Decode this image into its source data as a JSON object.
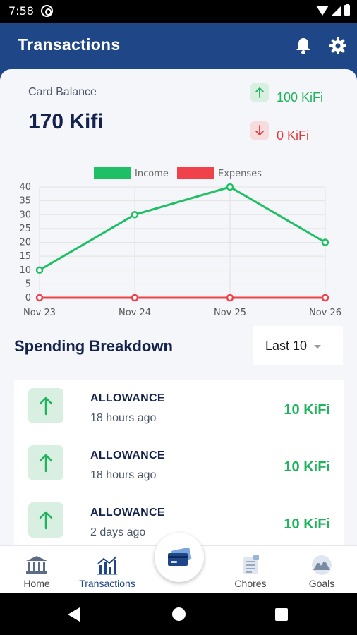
{
  "status_bar": {
    "time": "7:58"
  },
  "app_bar": {
    "title": "Transactions"
  },
  "balance": {
    "label": "Card Balance",
    "value": "170 Kifi"
  },
  "stats": {
    "income": "100 KiFi",
    "expenses": "0 KiFi"
  },
  "chart_data": {
    "type": "line",
    "categories": [
      "Nov 23",
      "Nov 24",
      "Nov 25",
      "Nov 26"
    ],
    "series": [
      {
        "name": "Income",
        "values": [
          10,
          30,
          40,
          20
        ],
        "color": "#1fbf65"
      },
      {
        "name": "Expenses",
        "values": [
          0,
          0,
          0,
          0
        ],
        "color": "#f0424a"
      }
    ],
    "y_ticks": [
      "0",
      "5",
      "10",
      "15",
      "20",
      "25",
      "30",
      "35",
      "40"
    ],
    "ylim": [
      0,
      40
    ],
    "grid": true,
    "legend": "top"
  },
  "breakdown": {
    "title": "Spending Breakdown",
    "filter": "Last 10",
    "items": [
      {
        "name": "ALLOWANCE",
        "time": "18 hours ago",
        "amount": "10 KiFi"
      },
      {
        "name": "ALLOWANCE",
        "time": "18 hours ago",
        "amount": "10 KiFi"
      },
      {
        "name": "ALLOWANCE",
        "time": "2 days ago",
        "amount": "10 KiFi"
      }
    ]
  },
  "nav": {
    "home": "Home",
    "transactions": "Transactions",
    "chores": "Chores",
    "goals": "Goals"
  },
  "icons": {
    "bell": "bell-icon",
    "gear": "gear-icon",
    "income": "arrow-up-icon",
    "expense": "arrow-down-icon",
    "home": "bank-icon",
    "transactions": "chart-icon",
    "fab": "card-icon",
    "chores": "clipboard-icon",
    "goals": "mountain-icon"
  },
  "colors": {
    "primary": "#1f4788",
    "income": "#1fb35c",
    "expense": "#e03c3c",
    "text_dark": "#14234d"
  }
}
